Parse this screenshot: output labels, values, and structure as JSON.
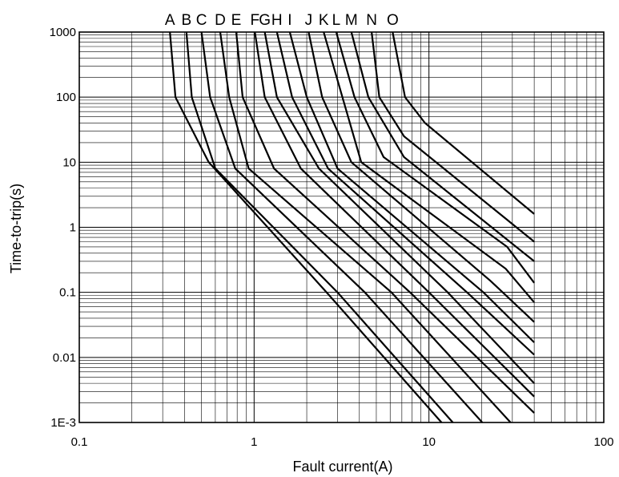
{
  "chart_data": {
    "type": "line",
    "xlabel": "Fault current(A)",
    "ylabel": "Time-to-trip(s)",
    "x_scale": "log",
    "y_scale": "log",
    "xlim": [
      0.1,
      100
    ],
    "ylim": [
      0.001,
      1000
    ],
    "x_ticks": [
      {
        "value": 0.1,
        "label": "0.1"
      },
      {
        "value": 1,
        "label": "1"
      },
      {
        "value": 10,
        "label": "10"
      },
      {
        "value": 100,
        "label": "100"
      }
    ],
    "y_ticks": [
      {
        "value": 0.001,
        "label": "1E-3"
      },
      {
        "value": 0.01,
        "label": "0.01"
      },
      {
        "value": 0.1,
        "label": "0.1"
      },
      {
        "value": 1,
        "label": "1"
      },
      {
        "value": 10,
        "label": "10"
      },
      {
        "value": 100,
        "label": "100"
      },
      {
        "value": 1000,
        "label": "1000"
      }
    ],
    "grid": true,
    "series": [
      {
        "name": "A",
        "points": [
          [
            0.33,
            1000
          ],
          [
            0.355,
            100
          ],
          [
            0.55,
            10
          ],
          [
            2.6,
            0.1
          ],
          [
            11.8,
            0.001
          ]
        ]
      },
      {
        "name": "B",
        "points": [
          [
            0.41,
            1000
          ],
          [
            0.44,
            100
          ],
          [
            0.6,
            8
          ],
          [
            3.0,
            0.1
          ],
          [
            13.7,
            0.001
          ]
        ]
      },
      {
        "name": "C",
        "points": [
          [
            0.5,
            1000
          ],
          [
            0.56,
            100
          ],
          [
            0.78,
            8
          ],
          [
            4.3,
            0.1
          ],
          [
            20.2,
            0.001
          ]
        ]
      },
      {
        "name": "D",
        "points": [
          [
            0.64,
            1000
          ],
          [
            0.72,
            100
          ],
          [
            0.93,
            8
          ],
          [
            6.1,
            0.1
          ],
          [
            29.3,
            0.001
          ]
        ]
      },
      {
        "name": "E",
        "points": [
          [
            0.79,
            1000
          ],
          [
            0.86,
            100
          ],
          [
            1.3,
            8
          ],
          [
            7.8,
            0.1
          ],
          [
            40,
            0.0014
          ]
        ]
      },
      {
        "name": "F",
        "points": [
          [
            1.01,
            1000
          ],
          [
            1.15,
            100
          ],
          [
            1.85,
            8
          ],
          [
            10,
            0.1
          ],
          [
            40,
            0.0025
          ]
        ]
      },
      {
        "name": "G",
        "points": [
          [
            1.15,
            1000
          ],
          [
            1.35,
            100
          ],
          [
            2.35,
            8
          ],
          [
            12.8,
            0.1
          ],
          [
            40,
            0.004
          ]
        ]
      },
      {
        "name": "H",
        "points": [
          [
            1.35,
            1000
          ],
          [
            1.65,
            100
          ],
          [
            2.65,
            8
          ],
          [
            16.5,
            0.1
          ],
          [
            40,
            0.011
          ]
        ]
      },
      {
        "name": "I",
        "points": [
          [
            1.6,
            1000
          ],
          [
            2.0,
            100
          ],
          [
            3.0,
            8
          ],
          [
            20.5,
            0.1
          ],
          [
            40,
            0.017
          ]
        ]
      },
      {
        "name": "J",
        "points": [
          [
            2.05,
            1000
          ],
          [
            2.45,
            100
          ],
          [
            3.6,
            10
          ],
          [
            22.5,
            0.15
          ],
          [
            40,
            0.035
          ]
        ]
      },
      {
        "name": "K",
        "points": [
          [
            2.5,
            1000
          ],
          [
            3.2,
            100
          ],
          [
            4.1,
            10
          ],
          [
            27.5,
            0.23
          ],
          [
            40,
            0.07
          ]
        ]
      },
      {
        "name": "L",
        "points": [
          [
            2.95,
            1000
          ],
          [
            3.75,
            100
          ],
          [
            5.5,
            12
          ],
          [
            28,
            0.5
          ],
          [
            40,
            0.14
          ]
        ]
      },
      {
        "name": "M",
        "points": [
          [
            3.6,
            1000
          ],
          [
            4.5,
            100
          ],
          [
            7.2,
            12
          ],
          [
            40,
            0.3
          ]
        ]
      },
      {
        "name": "N",
        "points": [
          [
            4.7,
            1000
          ],
          [
            5.2,
            100
          ],
          [
            7.2,
            25
          ],
          [
            40,
            0.6
          ]
        ]
      },
      {
        "name": "O",
        "points": [
          [
            6.2,
            1000
          ],
          [
            7.3,
            100
          ],
          [
            9.5,
            40
          ],
          [
            40,
            1.6
          ]
        ]
      }
    ]
  }
}
